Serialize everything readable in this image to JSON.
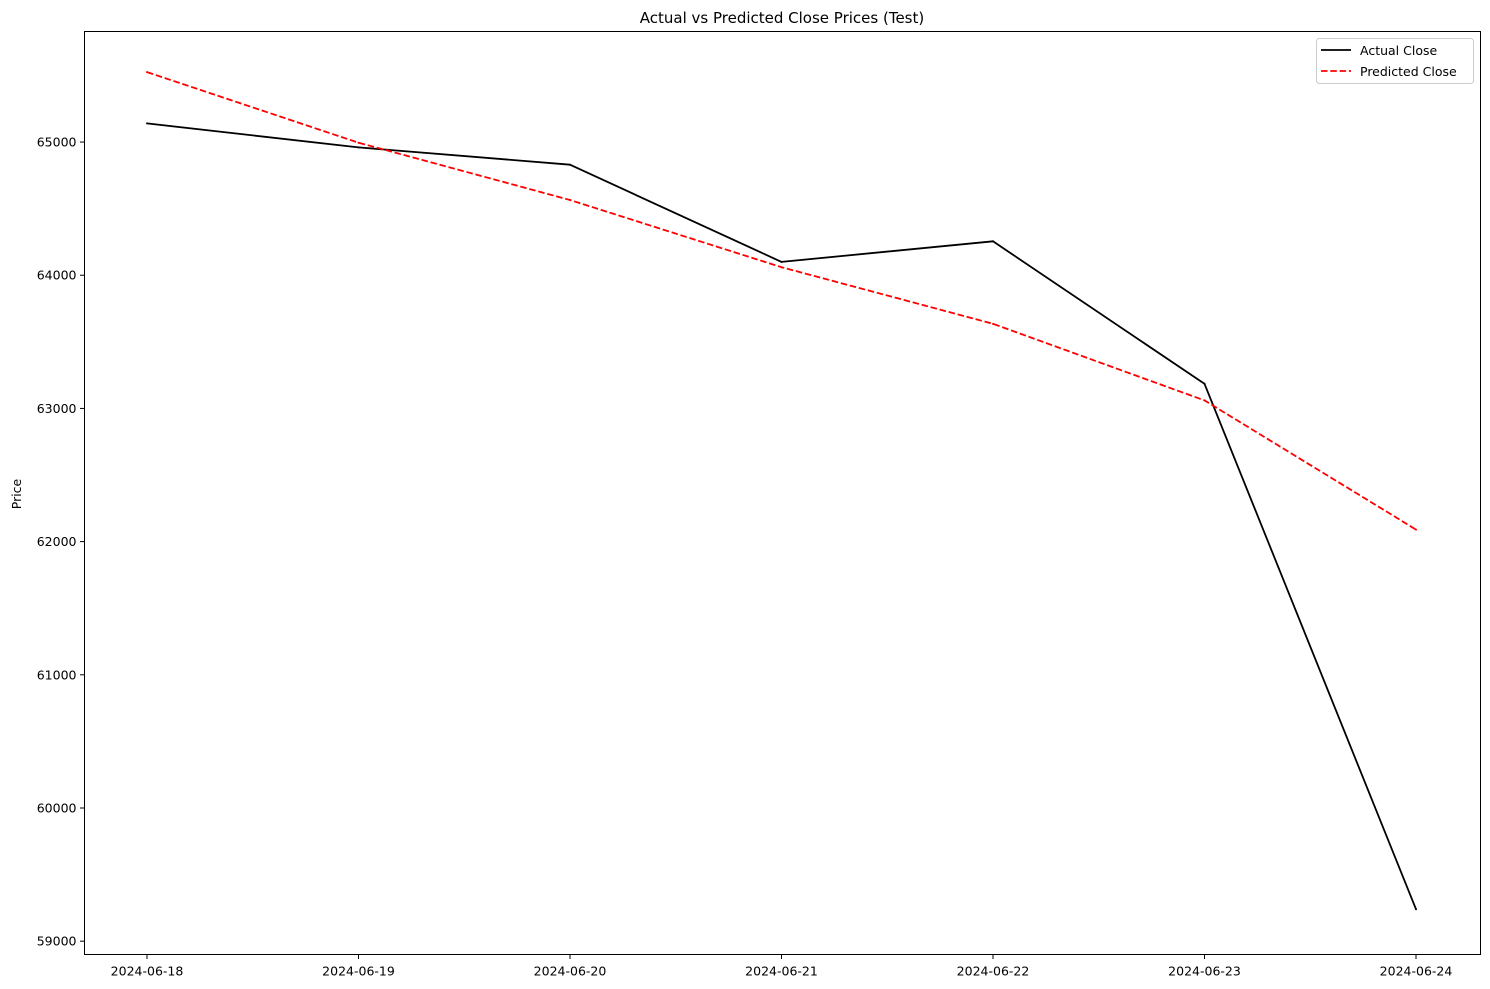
{
  "chart_data": {
    "type": "line",
    "title": "Actual vs Predicted Close Prices (Test)",
    "xlabel": "",
    "ylabel": "Price",
    "x": [
      "2024-06-18",
      "2024-06-19",
      "2024-06-20",
      "2024-06-21",
      "2024-06-22",
      "2024-06-23",
      "2024-06-24"
    ],
    "ylim": [
      58900,
      65830
    ],
    "yticks": [
      59000,
      60000,
      61000,
      62000,
      63000,
      64000,
      65000
    ],
    "grid": false,
    "legend_position": "top-right",
    "series": [
      {
        "name": "Actual Close",
        "color": "#000000",
        "style": "solid",
        "values": [
          65140,
          64960,
          64830,
          64100,
          64255,
          63185,
          59240
        ]
      },
      {
        "name": "Predicted Close",
        "color": "#ff0000",
        "style": "dashed",
        "values": [
          65525,
          64995,
          64565,
          64060,
          63635,
          63060,
          62090
        ]
      }
    ]
  }
}
